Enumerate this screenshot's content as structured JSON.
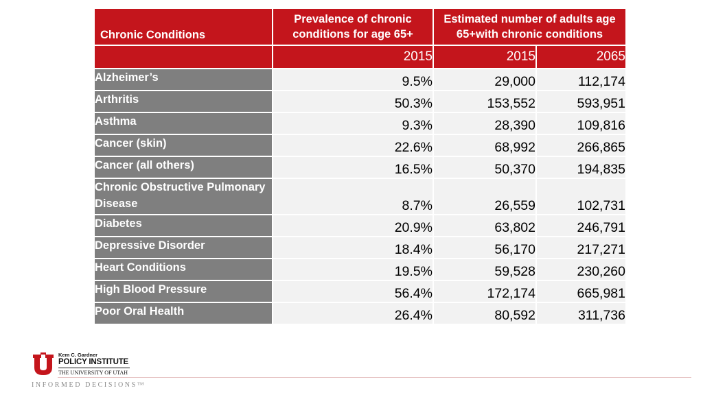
{
  "table": {
    "headers": {
      "condition": "Chronic Conditions",
      "prevalence": "Prevalence of chronic conditions for age 65+",
      "estimated": "Estimated number of adults age 65+with chronic conditions"
    },
    "years": [
      "",
      "2015",
      "2015",
      "2065"
    ],
    "rows": [
      {
        "name": "Alzheimer’s",
        "prevalence_2015": "9.5%",
        "adults_2015": "29,000",
        "adults_2065": "112,174"
      },
      {
        "name": "Arthritis",
        "prevalence_2015": "50.3%",
        "adults_2015": "153,552",
        "adults_2065": "593,951"
      },
      {
        "name": "Asthma",
        "prevalence_2015": "9.3%",
        "adults_2015": "28,390",
        "adults_2065": "109,816"
      },
      {
        "name": "Cancer (skin)",
        "prevalence_2015": "22.6%",
        "adults_2015": "68,992",
        "adults_2065": "266,865"
      },
      {
        "name": "Cancer (all others)",
        "prevalence_2015": "16.5%",
        "adults_2015": "50,370",
        "adults_2065": "194,835"
      },
      {
        "name": "Chronic Obstructive Pulmonary Disease",
        "prevalence_2015": "8.7%",
        "adults_2015": "26,559",
        "adults_2065": "102,731"
      },
      {
        "name": "Diabetes",
        "prevalence_2015": "20.9%",
        "adults_2015": "63,802",
        "adults_2065": "246,791"
      },
      {
        "name": "Depressive Disorder",
        "prevalence_2015": "18.4%",
        "adults_2015": "56,170",
        "adults_2065": "217,271"
      },
      {
        "name": "Heart Conditions",
        "prevalence_2015": "19.5%",
        "adults_2015": "59,528",
        "adults_2065": "230,260"
      },
      {
        "name": "High Blood Pressure",
        "prevalence_2015": "56.4%",
        "adults_2015": "172,174",
        "adults_2065": "665,981"
      },
      {
        "name": "Poor Oral Health",
        "prevalence_2015": "26.4%",
        "adults_2015": "80,592",
        "adults_2065": "311,736"
      }
    ]
  },
  "footer": {
    "logo_small": "Kem C. Gardner",
    "logo_institute": "POLICY INSTITUTE",
    "logo_university": "THE UNIVERSITY OF UTAH",
    "tagline": "INFORMED DECISIONS™"
  },
  "colors": {
    "header_red": "#c4151c",
    "label_gray": "#7f7f7f",
    "cell_light": "#f2f2f2"
  }
}
